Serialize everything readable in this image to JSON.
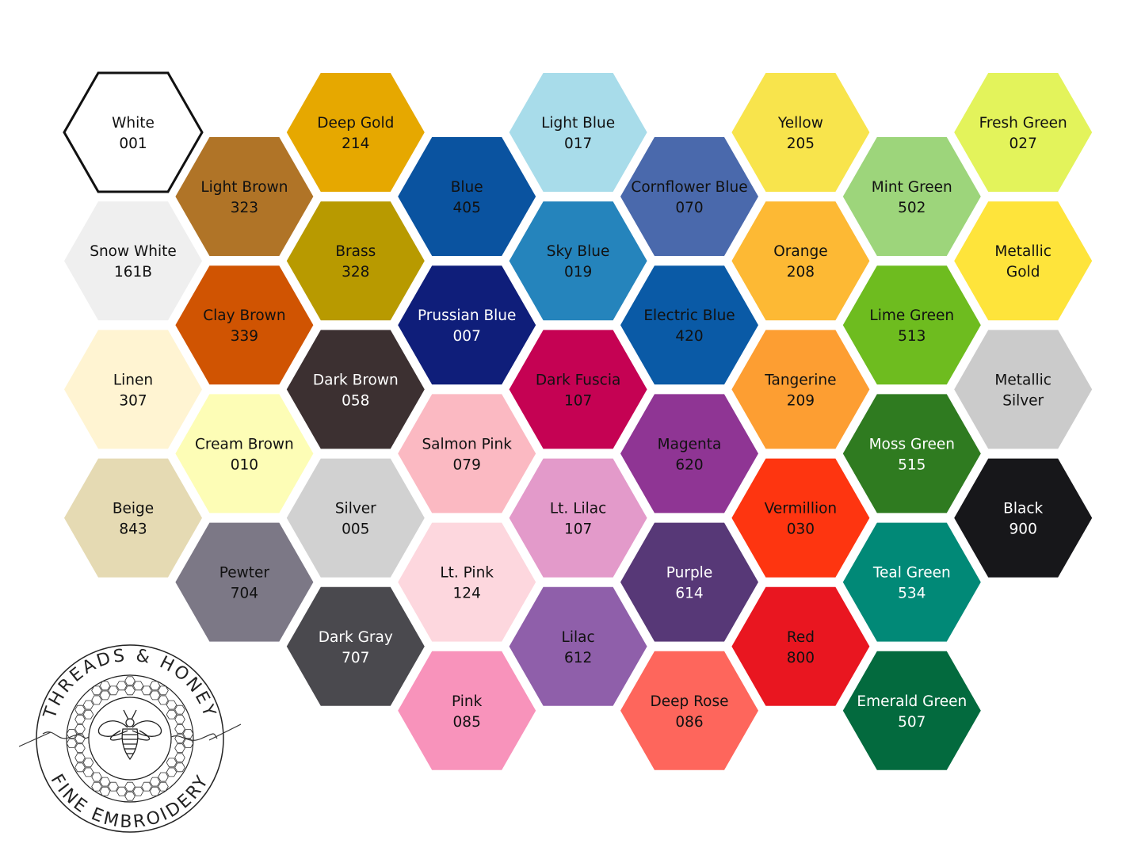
{
  "columns": [
    [
      {
        "name": "White",
        "code": "001",
        "fill": "#ffffff",
        "text": "#111111",
        "outlined": true
      },
      {
        "name": "Snow White",
        "code": "161B",
        "fill": "#efefef",
        "text": "#111111"
      },
      {
        "name": "Linen",
        "code": "307",
        "fill": "#fff4d2",
        "text": "#111111"
      },
      {
        "name": "Beige",
        "code": "843",
        "fill": "#e5dab3",
        "text": "#111111"
      }
    ],
    [
      {
        "name": "Light Brown",
        "code": "323",
        "fill": "#b07427",
        "text": "#111111"
      },
      {
        "name": "Clay Brown",
        "code": "339",
        "fill": "#d05402",
        "text": "#111111"
      },
      {
        "name": "Cream Brown",
        "code": "010",
        "fill": "#fdfdb6",
        "text": "#111111"
      },
      {
        "name": "Pewter",
        "code": "704",
        "fill": "#7c7886",
        "text": "#111111"
      }
    ],
    [
      {
        "name": "Deep Gold",
        "code": "214",
        "fill": "#e6a800",
        "text": "#111111"
      },
      {
        "name": "Brass",
        "code": "328",
        "fill": "#b89a00",
        "text": "#111111"
      },
      {
        "name": "Dark Brown",
        "code": "058",
        "fill": "#3c3031",
        "text": "#ffffff"
      },
      {
        "name": "Silver",
        "code": "005",
        "fill": "#d1d1d1",
        "text": "#111111"
      },
      {
        "name": "Dark Gray",
        "code": "707",
        "fill": "#4a494e",
        "text": "#ffffff"
      }
    ],
    [
      {
        "name": "Blue",
        "code": "405",
        "fill": "#0a53a0",
        "text": "#111111"
      },
      {
        "name": "Prussian Blue",
        "code": "007",
        "fill": "#0f1e7a",
        "text": "#ffffff"
      },
      {
        "name": "Salmon Pink",
        "code": "079",
        "fill": "#fbb9c2",
        "text": "#111111"
      },
      {
        "name": "Lt. Pink",
        "code": "124",
        "fill": "#fdd7de",
        "text": "#111111"
      },
      {
        "name": "Pink",
        "code": "085",
        "fill": "#f893bb",
        "text": "#111111"
      }
    ],
    [
      {
        "name": "Light Blue",
        "code": "017",
        "fill": "#a8dcea",
        "text": "#111111"
      },
      {
        "name": "Sky Blue",
        "code": "019",
        "fill": "#2584bc",
        "text": "#111111"
      },
      {
        "name": "Dark Fuscia",
        "code": "107",
        "fill": "#c50253",
        "text": "#111111"
      },
      {
        "name": "Lt. Lilac",
        "code": "107",
        "fill": "#e39aca",
        "text": "#111111"
      },
      {
        "name": "Lilac",
        "code": "612",
        "fill": "#8f5faa",
        "text": "#111111"
      }
    ],
    [
      {
        "name": "Cornflower Blue",
        "code": "070",
        "fill": "#4a69ac",
        "text": "#111111"
      },
      {
        "name": "Electric Blue",
        "code": "420",
        "fill": "#0a5aa6",
        "text": "#111111"
      },
      {
        "name": "Magenta",
        "code": "620",
        "fill": "#8f3594",
        "text": "#111111"
      },
      {
        "name": "Purple",
        "code": "614",
        "fill": "#573877",
        "text": "#ffffff"
      },
      {
        "name": "Deep Rose",
        "code": "086",
        "fill": "#fe665c",
        "text": "#111111"
      }
    ],
    [
      {
        "name": "Yellow",
        "code": "205",
        "fill": "#f8e44c",
        "text": "#111111"
      },
      {
        "name": "Orange",
        "code": "208",
        "fill": "#fdb934",
        "text": "#111111"
      },
      {
        "name": "Tangerine",
        "code": "209",
        "fill": "#fd9e32",
        "text": "#111111"
      },
      {
        "name": "Vermillion",
        "code": "030",
        "fill": "#fe3510",
        "text": "#111111"
      },
      {
        "name": "Red",
        "code": "800",
        "fill": "#e91620",
        "text": "#111111"
      }
    ],
    [
      {
        "name": "Mint Green",
        "code": "502",
        "fill": "#9dd57b",
        "text": "#111111"
      },
      {
        "name": "Lime Green",
        "code": "513",
        "fill": "#6ebc1f",
        "text": "#111111"
      },
      {
        "name": "Moss Green",
        "code": "515",
        "fill": "#2f7b20",
        "text": "#ffffff"
      },
      {
        "name": "Teal Green",
        "code": "534",
        "fill": "#018977",
        "text": "#ffffff"
      },
      {
        "name": "Emerald Green",
        "code": "507",
        "fill": "#036a3e",
        "text": "#ffffff"
      }
    ],
    [
      {
        "name": "Fresh Green",
        "code": "027",
        "fill": "#e3f35b",
        "text": "#111111"
      },
      {
        "name": "Metallic",
        "code": "Gold",
        "fill": "#fee43b",
        "text": "#111111"
      },
      {
        "name": "Metallic",
        "code": "Silver",
        "fill": "#cbcbcb",
        "text": "#111111"
      },
      {
        "name": "Black",
        "code": "900",
        "fill": "#17171a",
        "text": "#ffffff"
      }
    ]
  ],
  "logo": {
    "top_text": "THREADS & HONEY",
    "bottom_text": "FINE EMBROIDERY",
    "icon": "bee-icon"
  }
}
